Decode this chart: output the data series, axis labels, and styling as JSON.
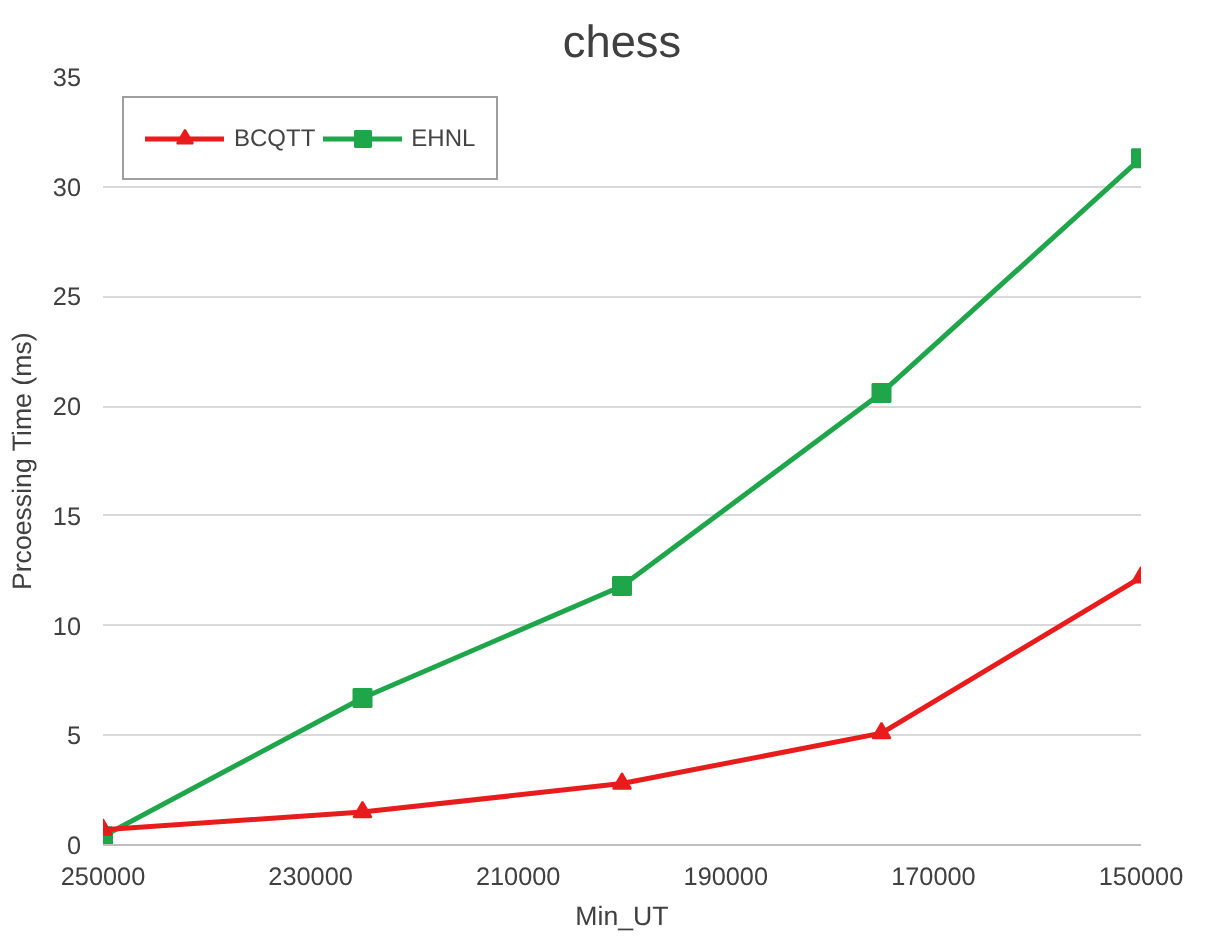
{
  "chart_data": {
    "type": "line",
    "title": "chess",
    "xlabel": "Min_UT",
    "ylabel": "Prcoessing Time (ms)",
    "x": [
      250000,
      225000,
      200000,
      175000,
      150000
    ],
    "series": [
      {
        "name": "BCQTT",
        "color": "#e81c1c",
        "values": [
          0.7,
          1.5,
          2.8,
          5.1,
          12.2
        ],
        "marker": "triangle"
      },
      {
        "name": "EHNL",
        "color": "#1fa64a",
        "values": [
          0.4,
          6.7,
          11.8,
          20.6,
          31.3
        ],
        "marker": "square"
      }
    ],
    "xlim": [
      250000,
      150000
    ],
    "xticks": [
      250000,
      230000,
      210000,
      190000,
      170000,
      150000
    ],
    "ylim": [
      0,
      35
    ],
    "yticks": [
      0,
      5,
      10,
      15,
      20,
      25,
      30,
      35
    ],
    "grid": "y",
    "legend": "top left",
    "line_style": "solid"
  }
}
